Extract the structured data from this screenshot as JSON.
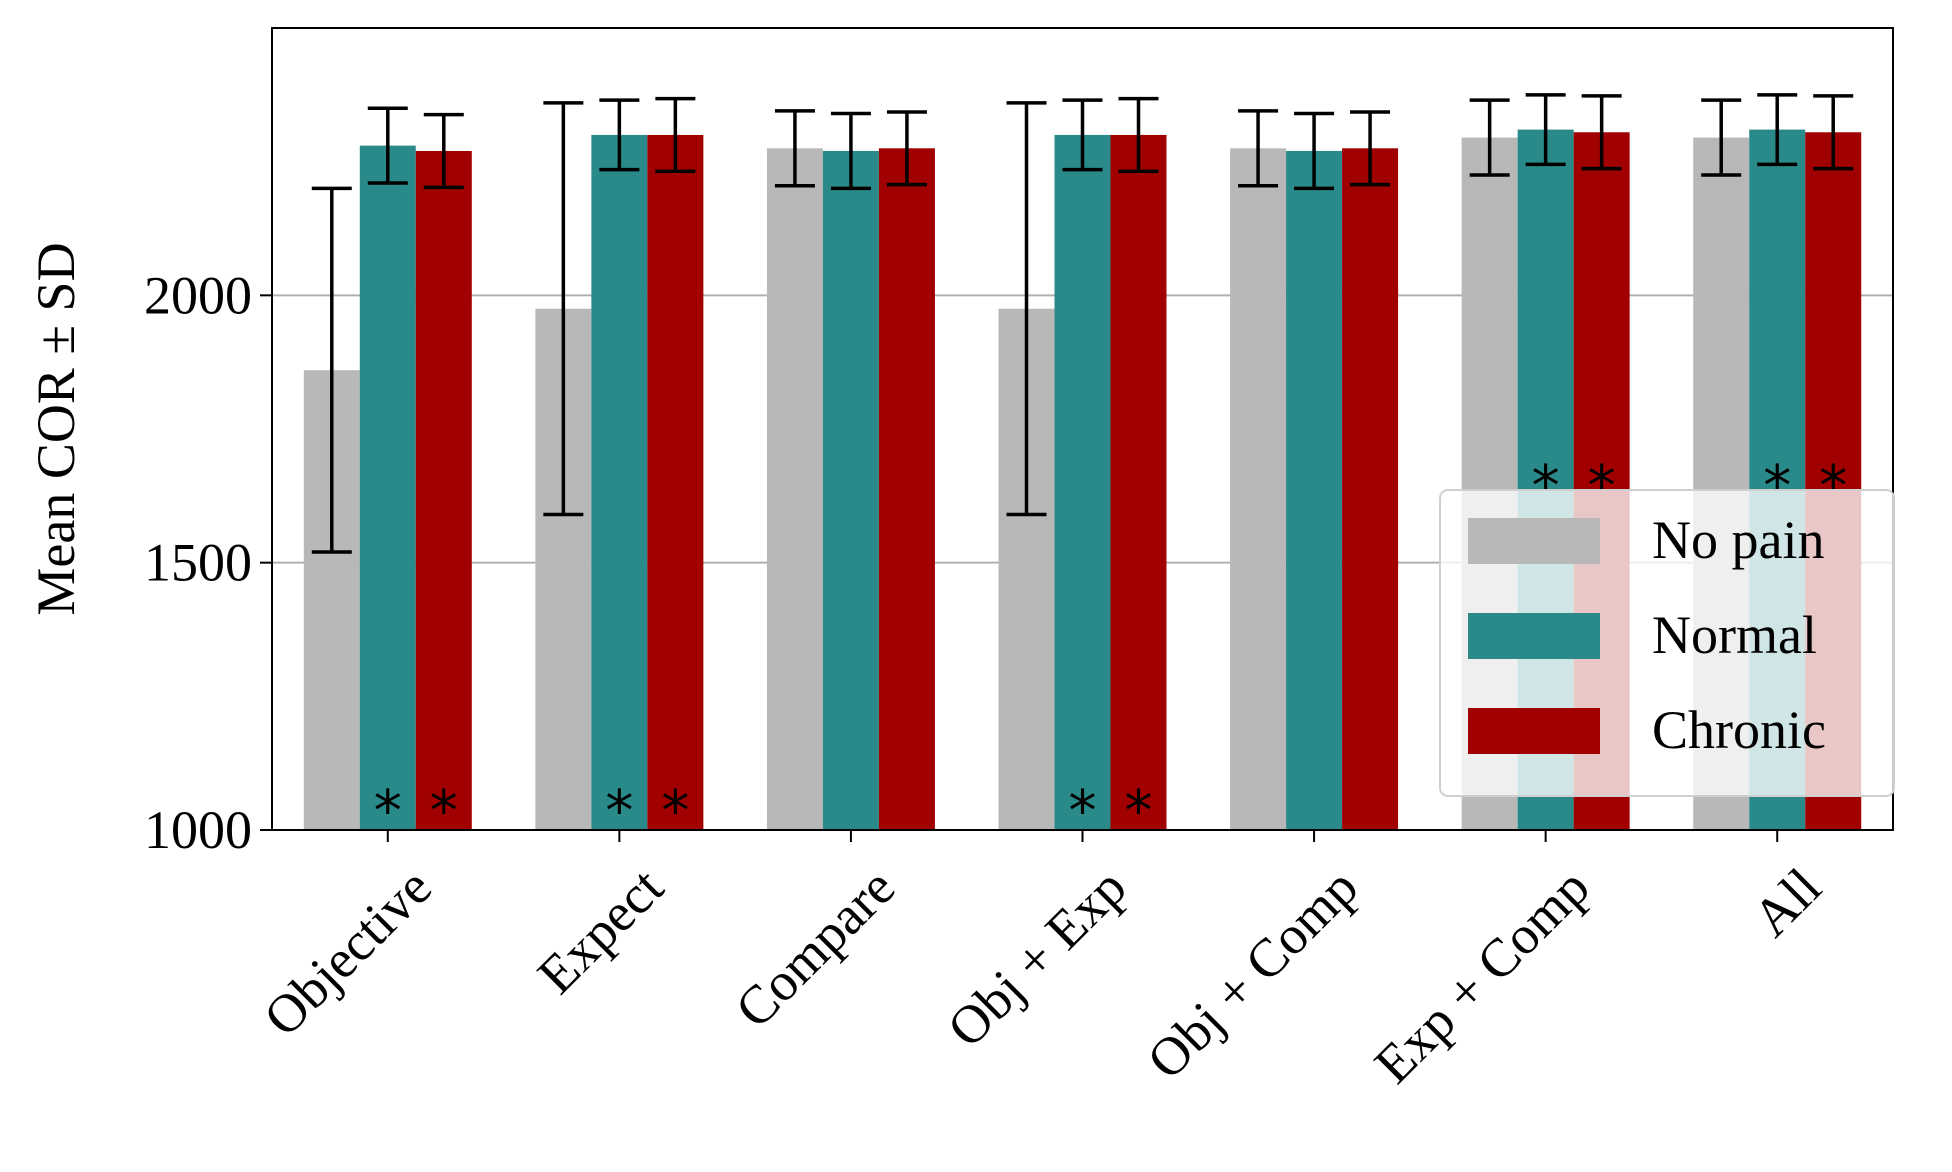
{
  "chart_data": {
    "type": "bar",
    "title": "",
    "xlabel": "",
    "ylabel": "Mean COR ± SD",
    "ylim": [
      1000,
      2500
    ],
    "yticks": [
      1000,
      1500,
      2000
    ],
    "ytick_labels": [
      "1000",
      "1500",
      "2000"
    ],
    "grid": "horizontal",
    "legend_position": "lower-right",
    "categories": [
      "Objective",
      "Expect",
      "Compare",
      "Obj + Exp",
      "Obj + Comp",
      "Exp + Comp",
      "All"
    ],
    "series": [
      {
        "name": "No pain",
        "color": "#b8b8b8",
        "values": [
          1860,
          1975,
          2275,
          1975,
          2275,
          2295,
          2295
        ],
        "sd": [
          340,
          385,
          70,
          385,
          70,
          70,
          70
        ],
        "significance": [
          "",
          "",
          "",
          "",
          "",
          "",
          ""
        ]
      },
      {
        "name": "Normal",
        "color": "#2a8a8a",
        "values": [
          2280,
          2300,
          2270,
          2300,
          2270,
          2310,
          2310
        ],
        "sd": [
          70,
          65,
          70,
          65,
          70,
          65,
          65
        ],
        "significance": [
          "*",
          "*",
          "",
          "*",
          "",
          "*",
          "*"
        ]
      },
      {
        "name": "Chronic",
        "color": "#a00000",
        "values": [
          2270,
          2300,
          2275,
          2300,
          2275,
          2305,
          2305
        ],
        "sd": [
          68,
          68,
          68,
          68,
          68,
          68,
          68
        ],
        "significance": [
          "*",
          "*",
          "",
          "*",
          "",
          "*",
          "*"
        ]
      }
    ]
  }
}
